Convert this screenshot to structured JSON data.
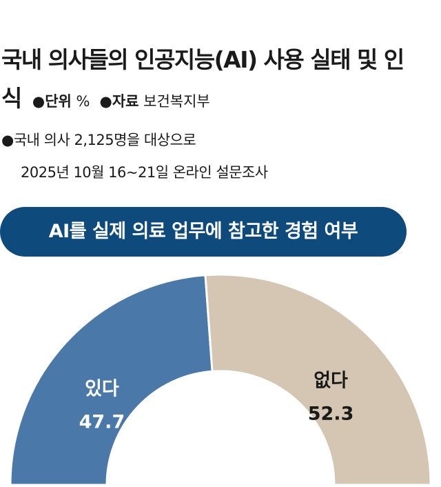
{
  "chart_data": {
    "type": "semi-donut",
    "title": "국내 의사들의 인공지능(AI) 사용 실태 및 인식",
    "unit_label": "단위",
    "unit": "%",
    "source_label": "자료",
    "source": "보건복지부",
    "note": [
      "국내 의사 2,125명을 대상으로",
      "2025년 10월 16~21일 온라인 설문조사"
    ],
    "subtitle": "AI를 실제 의료 업무에 참고한 경험 여부",
    "categories": [
      "있다",
      "없다"
    ],
    "values": [
      47.7,
      52.3
    ],
    "colors": [
      "#4a78a9",
      "#d4c6b3"
    ]
  }
}
